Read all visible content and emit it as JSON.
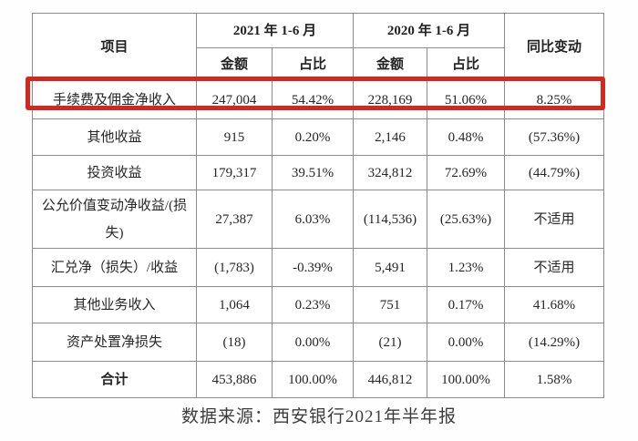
{
  "table": {
    "header": {
      "item": "项目",
      "period_2021": "2021 年 1-6 月",
      "period_2020": "2020 年 1-6 月",
      "yoy": "同比变动",
      "amount": "金额",
      "share": "占比"
    },
    "rows": [
      {
        "label": "手续费及佣金净收入",
        "amount_2021": "247,004",
        "share_2021": "54.42%",
        "amount_2020": "228,169",
        "share_2020": "51.06%",
        "yoy": "8.25%",
        "highlighted": true
      },
      {
        "label": "其他收益",
        "amount_2021": "915",
        "share_2021": "0.20%",
        "amount_2020": "2,146",
        "share_2020": "0.48%",
        "yoy": "(57.36%)"
      },
      {
        "label": "投资收益",
        "amount_2021": "179,317",
        "share_2021": "39.51%",
        "amount_2020": "324,812",
        "share_2020": "72.69%",
        "yoy": "(44.79%)"
      },
      {
        "label": "公允价值变动净收益/(损失)",
        "amount_2021": "27,387",
        "share_2021": "6.03%",
        "amount_2020": "(114,536)",
        "share_2020": "(25.63%)",
        "yoy": "不适用"
      },
      {
        "label": "汇兑净（损失）/收益",
        "amount_2021": "(1,783)",
        "share_2021": "-0.39%",
        "amount_2020": "5,491",
        "share_2020": "1.23%",
        "yoy": "不适用"
      },
      {
        "label": "其他业务收入",
        "amount_2021": "1,064",
        "share_2021": "0.23%",
        "amount_2020": "751",
        "share_2020": "0.17%",
        "yoy": "41.68%"
      },
      {
        "label": "资产处置净损失",
        "amount_2021": "(18)",
        "share_2021": "0.00%",
        "amount_2020": "(21)",
        "share_2020": "0.00%",
        "yoy": "(14.29%)"
      },
      {
        "label": "合计",
        "amount_2021": "453,886",
        "share_2021": "100.00%",
        "amount_2020": "446,812",
        "share_2020": "100.00%",
        "yoy": "1.58%",
        "total": true
      }
    ]
  },
  "footer": {
    "source": "数据来源：西安银行2021年半年报"
  },
  "colors": {
    "highlight_red": "#d3281e",
    "border_gray": "#8b8b8b",
    "text": "#262626"
  }
}
